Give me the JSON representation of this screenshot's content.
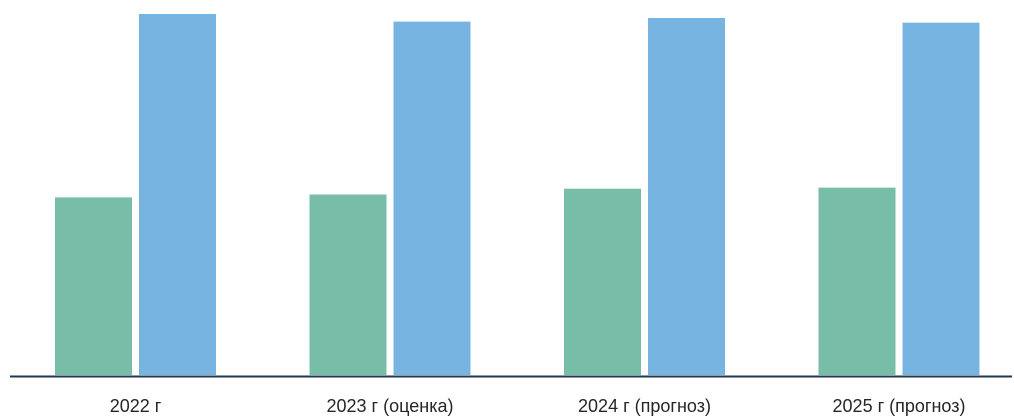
{
  "chart_data": {
    "type": "bar",
    "title": "",
    "xlabel": "",
    "ylabel": "",
    "categories": [
      "2022 г",
      "2023 г (оценка)",
      "2024 г (прогноз)",
      "2025 г (прогноз)"
    ],
    "series": [
      {
        "color": "#77bda8",
        "values": [
          49.2,
          50.0,
          51.6,
          51.9
        ]
      },
      {
        "color": "#78b4e2",
        "values": [
          100.0,
          97.9,
          98.9,
          97.6
        ]
      }
    ],
    "ylim": [
      0,
      100
    ],
    "grid": false,
    "legend": "none"
  }
}
